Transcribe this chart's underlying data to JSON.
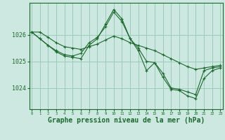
{
  "background_color": "#cce8e0",
  "grid_color": "#99ccbb",
  "line_color": "#1a6b2a",
  "marker_color": "#1a6b2a",
  "xlabel": "Graphe pression niveau de la mer (hPa)",
  "xlabel_fontsize": 7,
  "xticks": [
    0,
    1,
    2,
    3,
    4,
    5,
    6,
    7,
    8,
    9,
    10,
    11,
    12,
    13,
    14,
    15,
    16,
    17,
    18,
    19,
    20,
    21,
    22,
    23
  ],
  "yticks": [
    1024,
    1025,
    1026
  ],
  "ylim": [
    1023.2,
    1027.2
  ],
  "xlim": [
    -0.3,
    23.3
  ],
  "series": [
    [
      1026.1,
      1026.1,
      1025.9,
      1025.7,
      1025.55,
      1025.5,
      1025.45,
      1025.55,
      1025.65,
      1025.8,
      1025.95,
      1025.85,
      1025.7,
      1025.6,
      1025.5,
      1025.4,
      1025.25,
      1025.1,
      1024.95,
      1024.8,
      1024.7,
      1024.75,
      1024.8,
      1024.85
    ],
    [
      1026.1,
      1025.85,
      1025.6,
      1025.4,
      1025.25,
      1025.2,
      1025.3,
      1025.7,
      1025.9,
      1026.3,
      1026.85,
      1026.5,
      1025.85,
      1025.5,
      1025.0,
      1024.95,
      1024.55,
      1024.0,
      1023.95,
      1023.85,
      1023.75,
      1024.65,
      1024.75,
      1024.8
    ],
    [
      1026.1,
      1025.85,
      1025.6,
      1025.35,
      1025.2,
      1025.15,
      1025.1,
      1025.6,
      1025.85,
      1026.4,
      1026.95,
      1026.6,
      1025.85,
      1025.4,
      1024.65,
      1024.95,
      1024.4,
      1023.95,
      1023.9,
      1023.7,
      1023.6,
      1024.35,
      1024.65,
      1024.75
    ]
  ]
}
